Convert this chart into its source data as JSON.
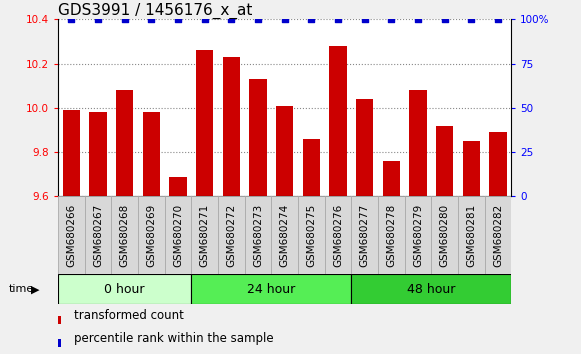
{
  "title": "GDS3991 / 1456176_x_at",
  "samples": [
    "GSM680266",
    "GSM680267",
    "GSM680268",
    "GSM680269",
    "GSM680270",
    "GSM680271",
    "GSM680272",
    "GSM680273",
    "GSM680274",
    "GSM680275",
    "GSM680276",
    "GSM680277",
    "GSM680278",
    "GSM680279",
    "GSM680280",
    "GSM680281",
    "GSM680282"
  ],
  "bar_values": [
    9.99,
    9.98,
    10.08,
    9.98,
    9.69,
    10.26,
    10.23,
    10.13,
    10.01,
    9.86,
    10.28,
    10.04,
    9.76,
    10.08,
    9.92,
    9.85,
    9.89
  ],
  "percentile_values": [
    100,
    100,
    100,
    100,
    100,
    100,
    100,
    100,
    100,
    100,
    100,
    100,
    100,
    100,
    100,
    100,
    100
  ],
  "groups": [
    {
      "label": "0 hour",
      "start": 0,
      "end": 5,
      "color": "#ccffcc"
    },
    {
      "label": "24 hour",
      "start": 5,
      "end": 11,
      "color": "#55ee55"
    },
    {
      "label": "48 hour",
      "start": 11,
      "end": 17,
      "color": "#33cc33"
    }
  ],
  "ylim_left": [
    9.6,
    10.4
  ],
  "ylim_right": [
    0,
    100
  ],
  "yticks_left": [
    9.6,
    9.8,
    10.0,
    10.2,
    10.4
  ],
  "yticks_right": [
    0,
    25,
    50,
    75,
    100
  ],
  "ytick_labels_right": [
    "0",
    "25",
    "50",
    "75",
    "100%"
  ],
  "bar_color": "#cc0000",
  "dot_color": "#0000cc",
  "grid_color": "#888888",
  "title_fontsize": 11,
  "tick_fontsize": 7.5,
  "group_label_fontsize": 9,
  "legend_fontsize": 8.5,
  "cell_color": "#d8d8d8",
  "fig_bg_color": "#f0f0f0"
}
